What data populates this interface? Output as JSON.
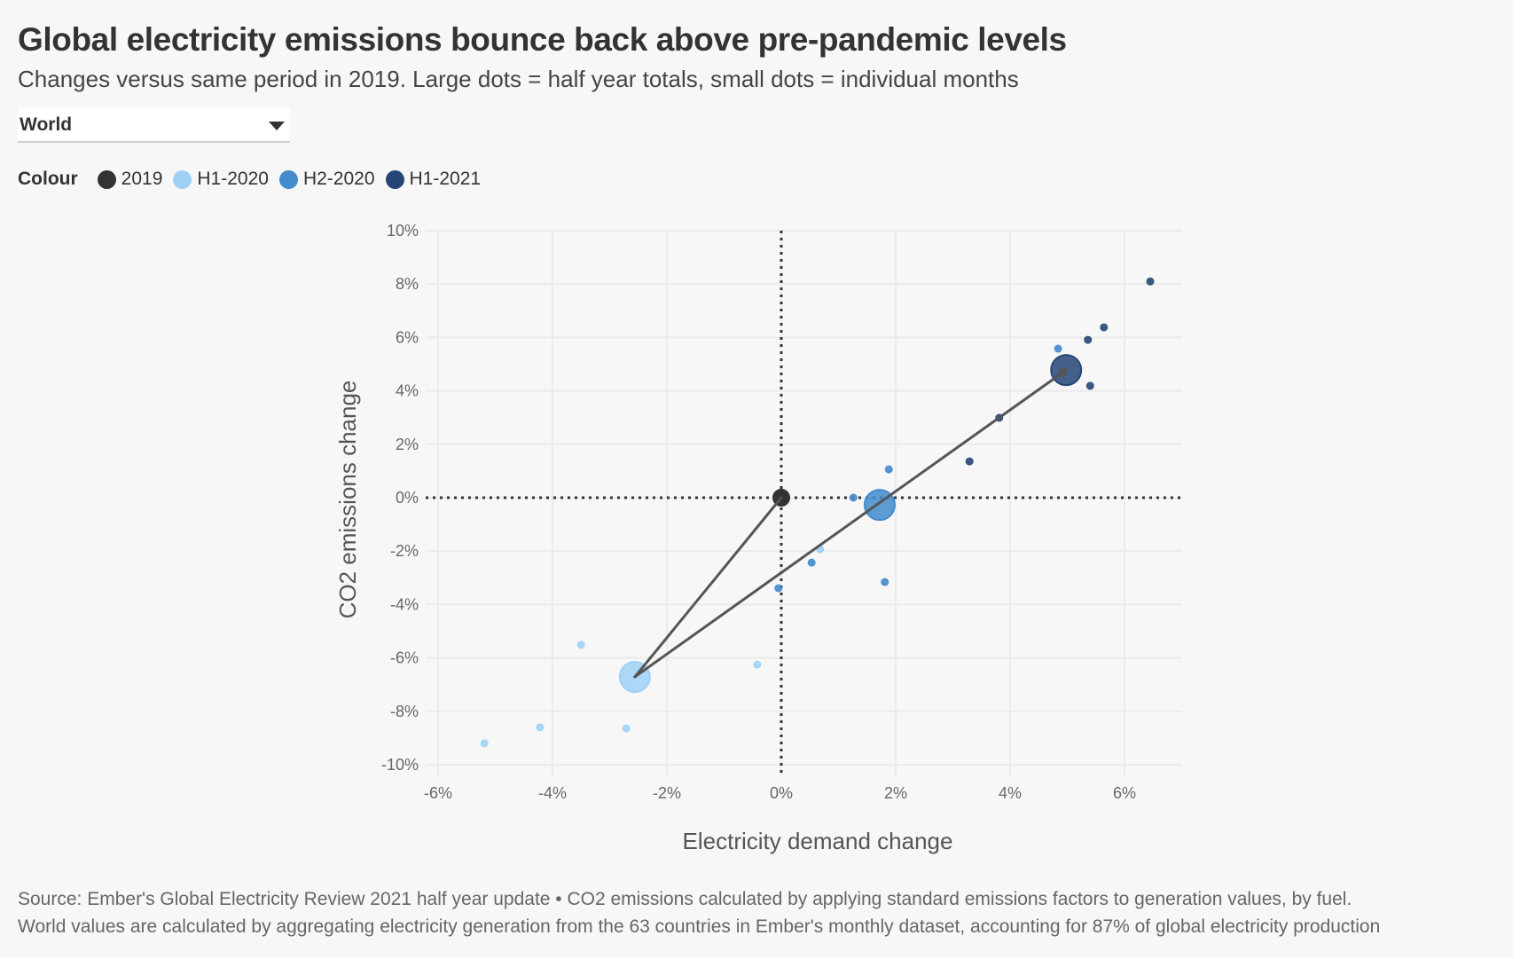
{
  "header": {
    "title": "Global electricity emissions bounce back above pre-pandemic levels",
    "subtitle": "Changes versus same period in 2019. Large dots = half year totals, small dots = individual months"
  },
  "region_select": {
    "selected": "World",
    "icon": "caret-down-icon"
  },
  "legend": {
    "label": "Colour",
    "items": [
      {
        "label": "2019",
        "color": "#333333"
      },
      {
        "label": "H1-2020",
        "color": "#9fd1f7"
      },
      {
        "label": "H2-2020",
        "color": "#428bcc"
      },
      {
        "label": "H1-2021",
        "color": "#264775"
      }
    ]
  },
  "footer": {
    "line1": "Source: Ember's Global Electricity Review 2021 half year update • CO2 emissions calculated by applying standard emissions factors to generation values, by fuel.",
    "line2": "World values are calculated by aggregating electricity generation from the 63 countries in Ember's monthly dataset, accounting for 87% of global electricity production"
  },
  "chart_data": {
    "type": "scatter",
    "title": "Global electricity emissions bounce back above pre-pandemic levels",
    "xlabel": "Electricity demand change",
    "ylabel": "CO2 emissions change",
    "xlim": [
      -6,
      7
    ],
    "ylim": [
      -10,
      10
    ],
    "x_ticks": [
      -6,
      -4,
      -2,
      0,
      2,
      4,
      6
    ],
    "y_ticks": [
      -10,
      -8,
      -6,
      -4,
      -2,
      0,
      2,
      4,
      6,
      8,
      10
    ],
    "tick_suffix": "%",
    "grid": true,
    "reference_lines": {
      "x": 0,
      "y": 0,
      "style": "dotted"
    },
    "series": [
      {
        "name": "2019",
        "color": "#333333",
        "total": {
          "x": 0,
          "y": 0
        },
        "months": []
      },
      {
        "name": "H1-2020",
        "color": "#9fd1f7",
        "total": {
          "x": -2.56,
          "y": -6.71
        },
        "months": [
          {
            "x": -5.19,
            "y": -9.2
          },
          {
            "x": -4.22,
            "y": -8.6
          },
          {
            "x": -3.5,
            "y": -5.51
          },
          {
            "x": -2.71,
            "y": -8.64
          },
          {
            "x": -0.42,
            "y": -6.25
          },
          {
            "x": 0.68,
            "y": -1.93
          }
        ]
      },
      {
        "name": "H2-2020",
        "color": "#428bcc",
        "total": {
          "x": 1.72,
          "y": -0.27
        },
        "months": [
          {
            "x": 1.88,
            "y": 1.06
          },
          {
            "x": 1.26,
            "y": 0.0
          },
          {
            "x": 0.53,
            "y": -2.43
          },
          {
            "x": -0.05,
            "y": -3.39
          },
          {
            "x": 1.81,
            "y": -3.16
          },
          {
            "x": 4.84,
            "y": 5.58
          }
        ]
      },
      {
        "name": "H1-2021",
        "color": "#264775",
        "total": {
          "x": 4.98,
          "y": 4.78
        },
        "months": [
          {
            "x": 6.45,
            "y": 8.1
          },
          {
            "x": 5.64,
            "y": 6.38
          },
          {
            "x": 5.36,
            "y": 5.91
          },
          {
            "x": 5.4,
            "y": 4.19
          },
          {
            "x": 3.81,
            "y": 2.99
          },
          {
            "x": 3.29,
            "y": 1.36
          }
        ]
      }
    ],
    "path": [
      "2019",
      "H1-2020",
      "H1-2021"
    ]
  }
}
